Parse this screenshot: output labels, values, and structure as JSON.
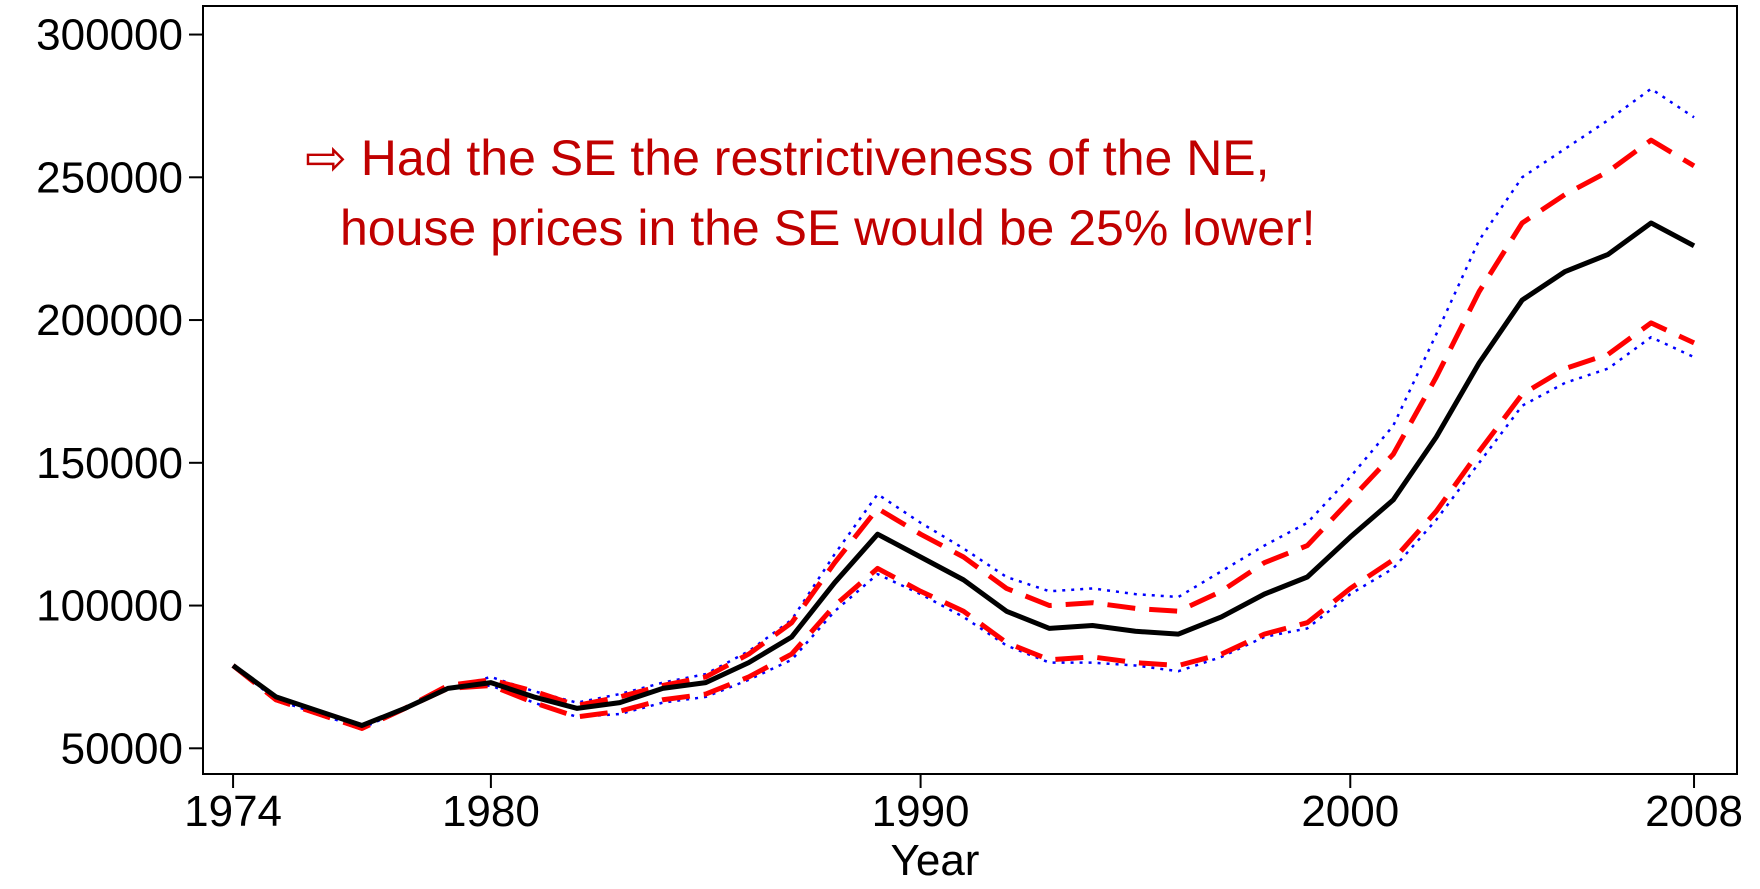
{
  "chart_data": {
    "type": "line",
    "annotation": [
      "⇨  Had the SE the restrictiveness of the NE,",
      "house prices in the SE would be 25% lower!"
    ],
    "annotation_color": "#c00000",
    "xlabel": "Year",
    "x": [
      1974,
      1975,
      1976,
      1977,
      1978,
      1979,
      1980,
      1981,
      1982,
      1983,
      1984,
      1985,
      1986,
      1987,
      1988,
      1989,
      1990,
      1991,
      1992,
      1993,
      1994,
      1995,
      1996,
      1997,
      1998,
      1999,
      2000,
      2001,
      2002,
      2003,
      2004,
      2005,
      2006,
      2007,
      2008
    ],
    "xlim": [
      1973.3,
      2009
    ],
    "xticks": [
      1974,
      1980,
      1990,
      2000,
      2008
    ],
    "ylim": [
      41000,
      310000
    ],
    "yticks": [
      50000,
      100000,
      150000,
      200000,
      250000,
      300000
    ],
    "series": [
      {
        "color": "#0000ff",
        "style": "dotted",
        "values": [
          79000,
          67000,
          62000,
          57000,
          64000,
          71000,
          75000,
          70000,
          66000,
          69000,
          73000,
          76000,
          84000,
          95000,
          118000,
          139000,
          129000,
          120000,
          110000,
          105000,
          106000,
          104000,
          103000,
          112000,
          121000,
          129000,
          145000,
          163000,
          195000,
          228000,
          250000,
          260000,
          270000,
          281000,
          271000
        ]
      },
      {
        "color": "#0000ff",
        "style": "dotted",
        "values": [
          79000,
          67000,
          62000,
          57000,
          64000,
          71000,
          72000,
          66000,
          61000,
          62000,
          66000,
          68000,
          74000,
          81000,
          98000,
          111000,
          104000,
          96000,
          86000,
          80000,
          80000,
          79000,
          77000,
          82000,
          89000,
          92000,
          104000,
          113000,
          130000,
          150000,
          170000,
          178000,
          183000,
          194000,
          187000
        ]
      },
      {
        "color": "#ff0000",
        "style": "dashed",
        "values": [
          79000,
          67000,
          62000,
          57000,
          64000,
          72000,
          74000,
          70000,
          65000,
          68000,
          72000,
          75000,
          83000,
          94000,
          115000,
          134000,
          125000,
          117000,
          106000,
          100000,
          101000,
          99000,
          98000,
          105000,
          115000,
          121000,
          137000,
          153000,
          180000,
          210000,
          234000,
          244000,
          252000,
          263000,
          254000
        ]
      },
      {
        "color": "#ff0000",
        "style": "dashed",
        "values": [
          79000,
          67000,
          62000,
          57000,
          64000,
          71000,
          72000,
          66000,
          61000,
          63000,
          67000,
          69000,
          75000,
          83000,
          100000,
          113000,
          105000,
          98000,
          87000,
          81000,
          82000,
          80000,
          79000,
          83000,
          90000,
          94000,
          106000,
          116000,
          133000,
          154000,
          174000,
          183000,
          188000,
          199000,
          192000
        ]
      },
      {
        "color": "#000000",
        "style": "solid",
        "values": [
          79000,
          68000,
          63000,
          58000,
          64000,
          71000,
          73000,
          68000,
          64000,
          66000,
          71000,
          73000,
          80000,
          89000,
          108000,
          125000,
          117000,
          109000,
          98000,
          92000,
          93000,
          91000,
          90000,
          96000,
          104000,
          110000,
          124000,
          137000,
          159000,
          185000,
          207000,
          217000,
          223000,
          234000,
          226000
        ]
      }
    ]
  }
}
